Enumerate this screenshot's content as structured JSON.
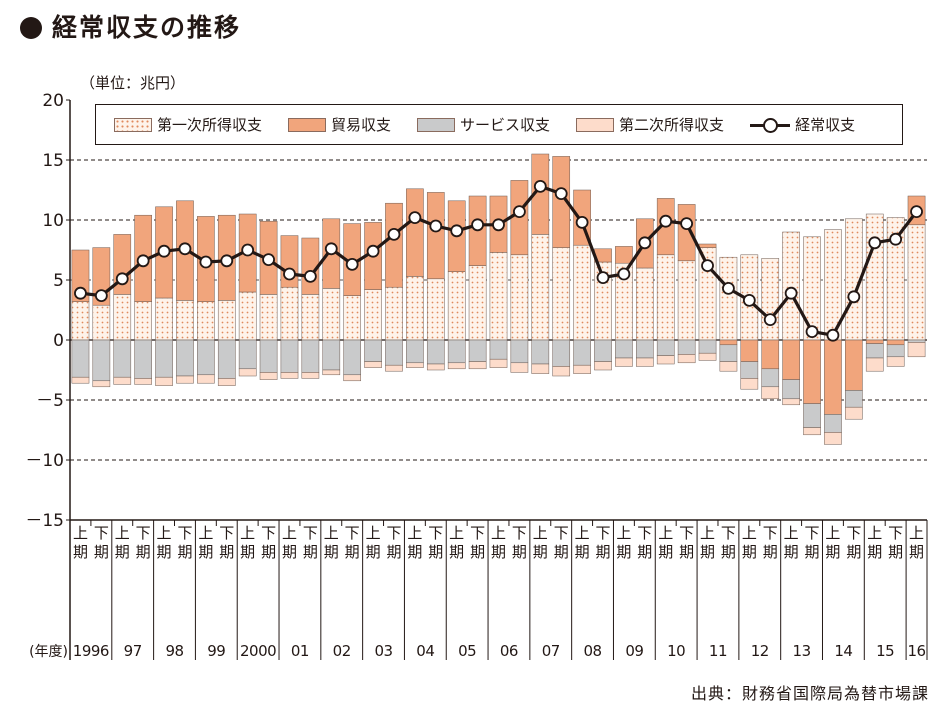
{
  "title": "経常収支の推移",
  "unit_label": "（単位：兆円）",
  "source": "出典：財務省国際局為替市場課",
  "colors": {
    "primary_income": "#fef3ea",
    "primary_income_dots": "#e08a5c",
    "trade": "#f1a57c",
    "services": "#c9cacb",
    "secondary_income": "#fddccb",
    "current_account": "#231815"
  },
  "legend": {
    "primary_income": "第一次所得収支",
    "trade": "貿易収支",
    "services": "サービス収支",
    "secondary_income": "第二次所得収支",
    "current_account": "経常収支"
  },
  "chart_data": {
    "type": "bar",
    "stacked": true,
    "ylim": [
      -15,
      20
    ],
    "yticks": [
      20,
      15,
      10,
      5,
      0,
      -5,
      -10,
      -15
    ],
    "ytick_labels": [
      "20",
      "15",
      "10",
      "5",
      "0",
      "－5",
      "－10",
      "－15"
    ],
    "grid": "dashed horizontal at 15, 10, -5, -10",
    "legend_position": "top",
    "half_labels": [
      "上期",
      "下期"
    ],
    "year_axis_label": "(年度)",
    "year_labels": [
      "1996",
      "97",
      "98",
      "99",
      "2000",
      "01",
      "02",
      "03",
      "04",
      "05",
      "06",
      "07",
      "08",
      "09",
      "10",
      "11",
      "12",
      "13",
      "14",
      "15",
      "16"
    ],
    "categories": [
      "1996上",
      "1996下",
      "1997上",
      "1997下",
      "1998上",
      "1998下",
      "1999上",
      "1999下",
      "2000上",
      "2000下",
      "2001上",
      "2001下",
      "2002上",
      "2002下",
      "2003上",
      "2003下",
      "2004上",
      "2004下",
      "2005上",
      "2005下",
      "2006上",
      "2006下",
      "2007上",
      "2007下",
      "2008上",
      "2008下",
      "2009上",
      "2009下",
      "2010上",
      "2010下",
      "2011上",
      "2011下",
      "2012上",
      "2012下",
      "2013上",
      "2013下",
      "2014上",
      "2014下",
      "2015上",
      "2015下",
      "2016上"
    ],
    "series": [
      {
        "name": "第一次所得収支",
        "key": "primary_income",
        "values": [
          3.2,
          2.9,
          3.8,
          3.2,
          3.5,
          3.3,
          3.2,
          3.3,
          4.0,
          3.8,
          4.4,
          3.8,
          4.3,
          3.7,
          4.2,
          4.4,
          5.3,
          5.1,
          5.7,
          6.2,
          7.3,
          7.1,
          8.8,
          7.7,
          7.9,
          6.5,
          6.4,
          6.0,
          7.1,
          6.6,
          7.7,
          6.9,
          7.1,
          6.8,
          9.0,
          8.6,
          9.2,
          10.1,
          10.5,
          10.2,
          9.6
        ]
      },
      {
        "name": "貿易収支",
        "key": "trade",
        "values": [
          4.3,
          4.8,
          5.0,
          7.2,
          7.6,
          8.3,
          7.1,
          7.1,
          6.5,
          6.1,
          4.3,
          4.7,
          5.8,
          6.0,
          5.6,
          7.0,
          7.3,
          7.2,
          5.9,
          5.8,
          4.7,
          6.2,
          6.7,
          7.6,
          4.6,
          1.1,
          1.4,
          4.1,
          4.7,
          4.7,
          0.3,
          -0.4,
          -1.8,
          -2.4,
          -3.3,
          -5.3,
          -6.2,
          -4.2,
          -0.3,
          -0.4,
          2.4
        ]
      },
      {
        "name": "サービス収支",
        "key": "services",
        "values": [
          -3.1,
          -3.4,
          -3.1,
          -3.2,
          -3.1,
          -3.0,
          -2.9,
          -3.2,
          -2.4,
          -2.7,
          -2.7,
          -2.7,
          -2.5,
          -2.9,
          -1.8,
          -2.1,
          -1.9,
          -2.0,
          -1.9,
          -1.8,
          -1.6,
          -1.9,
          -2.0,
          -2.2,
          -2.1,
          -1.8,
          -1.5,
          -1.5,
          -1.3,
          -1.2,
          -1.1,
          -1.4,
          -1.4,
          -1.5,
          -1.6,
          -2.0,
          -1.5,
          -1.4,
          -1.2,
          -1.0,
          -0.2
        ]
      },
      {
        "name": "第二次所得収支",
        "key": "secondary_income",
        "values": [
          -0.5,
          -0.5,
          -0.6,
          -0.5,
          -0.7,
          -0.6,
          -0.7,
          -0.6,
          -0.6,
          -0.6,
          -0.5,
          -0.5,
          -0.4,
          -0.5,
          -0.5,
          -0.5,
          -0.4,
          -0.5,
          -0.5,
          -0.6,
          -0.7,
          -0.8,
          -0.8,
          -0.8,
          -0.7,
          -0.7,
          -0.7,
          -0.7,
          -0.7,
          -0.7,
          -0.6,
          -0.8,
          -0.9,
          -1.0,
          -0.5,
          -0.6,
          -1.0,
          -1.0,
          -1.1,
          -0.8,
          -1.2
        ]
      },
      {
        "name": "経常収支",
        "key": "current_account",
        "type": "line",
        "values": [
          3.9,
          3.7,
          5.1,
          6.6,
          7.4,
          7.6,
          6.5,
          6.6,
          7.5,
          6.7,
          5.5,
          5.3,
          7.6,
          6.3,
          7.4,
          8.8,
          10.2,
          9.5,
          9.1,
          9.6,
          9.6,
          10.7,
          12.8,
          12.2,
          9.8,
          5.2,
          5.5,
          8.1,
          9.9,
          9.7,
          6.2,
          4.3,
          3.3,
          1.7,
          3.9,
          0.7,
          0.4,
          3.6,
          8.1,
          8.4,
          10.7
        ]
      }
    ]
  }
}
